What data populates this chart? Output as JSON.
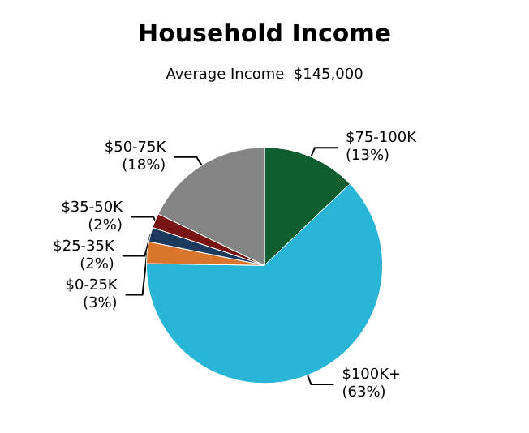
{
  "chart_data": {
    "type": "pie",
    "title": "Household Income",
    "subtitle": "Average Income  $145,000",
    "categories": [
      "$75-100K",
      "$100K+",
      "$0-25K",
      "$25-35K",
      "$35-50K",
      "$50-75K"
    ],
    "values": [
      13,
      63,
      3,
      2,
      2,
      18
    ],
    "value_labels": [
      "(13%)",
      "(63%)",
      "(3%)",
      "(2%)",
      "(2%)",
      "(18%)"
    ],
    "colors": [
      "#0f5e32",
      "#29b6d6",
      "#d9752c",
      "#1c3a5e",
      "#7a1414",
      "#848484"
    ],
    "legend": false
  }
}
